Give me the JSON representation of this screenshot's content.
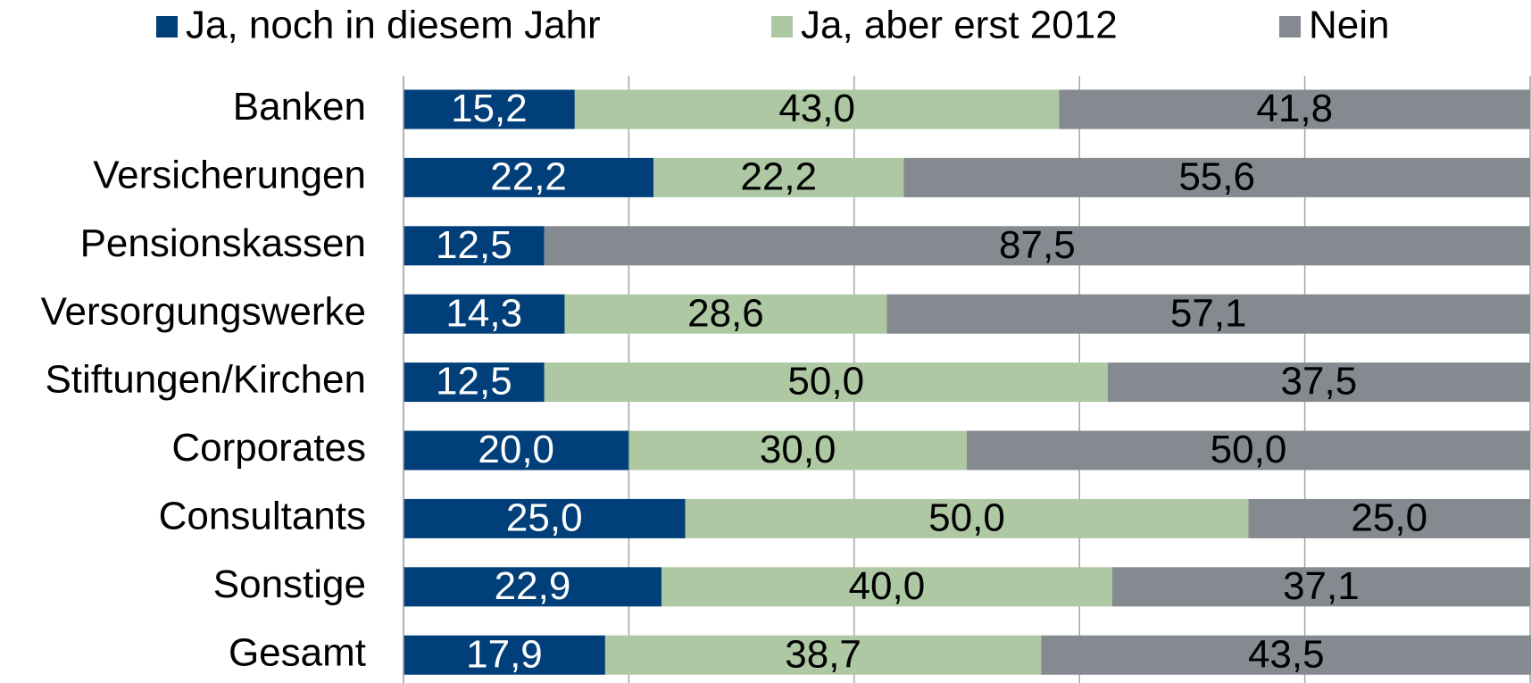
{
  "chart_data": {
    "type": "stacked-bar-horizontal",
    "categories": [
      "Banken",
      "Versicherungen",
      "Pensionskassen",
      "Versorgungswerke",
      "Stiftungen/Kirchen",
      "Corporates",
      "Consultants",
      "Sonstige",
      "Gesamt"
    ],
    "series": [
      {
        "name": "Ja, noch in diesem Jahr",
        "color": "#003f7a",
        "label_color": "#ffffff",
        "values": [
          15.2,
          22.2,
          12.5,
          14.3,
          12.5,
          20.0,
          25.0,
          22.9,
          17.9
        ],
        "value_labels": [
          "15,2",
          "22,2",
          "12,5",
          "14,3",
          "12,5",
          "20,0",
          "25,0",
          "22,9",
          "17,9"
        ]
      },
      {
        "name": "Ja, aber erst 2012",
        "color": "#adc8a3",
        "label_color": "#000000",
        "values": [
          43.0,
          22.2,
          null,
          28.6,
          50.0,
          30.0,
          50.0,
          40.0,
          38.7
        ],
        "value_labels": [
          "43,0",
          "22,2",
          null,
          "28,6",
          "50,0",
          "30,0",
          "50,0",
          "40,0",
          "38,7"
        ]
      },
      {
        "name": "Nein",
        "color": "#858990",
        "label_color": "#000000",
        "values": [
          41.8,
          55.6,
          87.5,
          57.1,
          37.5,
          50.0,
          25.0,
          37.1,
          43.5
        ],
        "value_labels": [
          "41,8",
          "55,6",
          "87,5",
          "57,1",
          "37,5",
          "50,0",
          "25,0",
          "37,1",
          "43,5"
        ]
      }
    ],
    "xlim": [
      0,
      100
    ],
    "xticks": [
      0,
      20,
      40,
      60,
      80,
      100
    ],
    "grid": true,
    "legend": "top"
  }
}
